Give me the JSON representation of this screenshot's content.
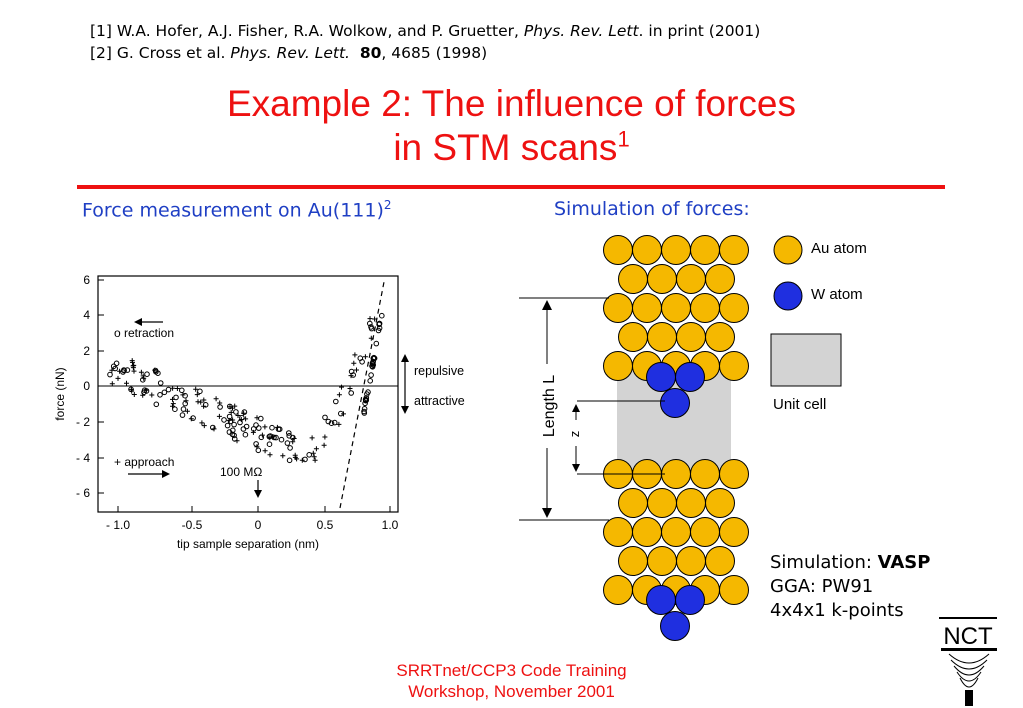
{
  "references": [
    {
      "pre": "[1] W.A. Hofer, A.J. Fisher, R.A. Wolkow, and P. Gruetter, ",
      "journal": "Phys. Rev. Lett",
      "mid": "",
      "post": ". in print (2001)"
    },
    {
      "pre": "[2] G. Cross et al. ",
      "journal": "Phys. Rev. Lett.",
      "mid": "80",
      "post": ", 4685 (1998)"
    }
  ],
  "title": {
    "line1": "Example 2: The influence of forces",
    "line2": "in STM scans",
    "sup": "1"
  },
  "subtitles": {
    "left": "Force measurement on Au(111)",
    "left_sup": "2",
    "right": "Simulation of forces:"
  },
  "graph": {
    "ylabel": "force (nN)",
    "xlabel": "tip sample separation (nm)",
    "x_ticks": [
      "- 1.0",
      "-0.5",
      "0",
      "0.5",
      "1.0"
    ],
    "y_ticks": [
      "6",
      "4",
      "2",
      "0",
      "- 2",
      "- 4",
      "- 6"
    ],
    "retraction_label": "o retraction",
    "approach_label": "+ approach",
    "resistance_label": "100 MΩ",
    "repulsive_label": "repulsive",
    "attractive_label": "attractive"
  },
  "simulation": {
    "legend_au": "Au atom",
    "legend_w": "W atom",
    "legend_cell": "Unit cell",
    "length_label": "Length L",
    "z_label": "z",
    "au_color": "#f5b800",
    "w_color": "#1f2fe0",
    "cell_color": "#d3d3d3"
  },
  "sim_info": {
    "line1_prefix": "Simulation: ",
    "line1_bold": "VASP",
    "line2": "GGA: PW91",
    "line3": "4x4x1 k-points"
  },
  "footer": {
    "line1": "SRRTnet/CCP3 Code Training",
    "line2": "Workshop, November 2001"
  },
  "logo": {
    "text": "NCT"
  }
}
